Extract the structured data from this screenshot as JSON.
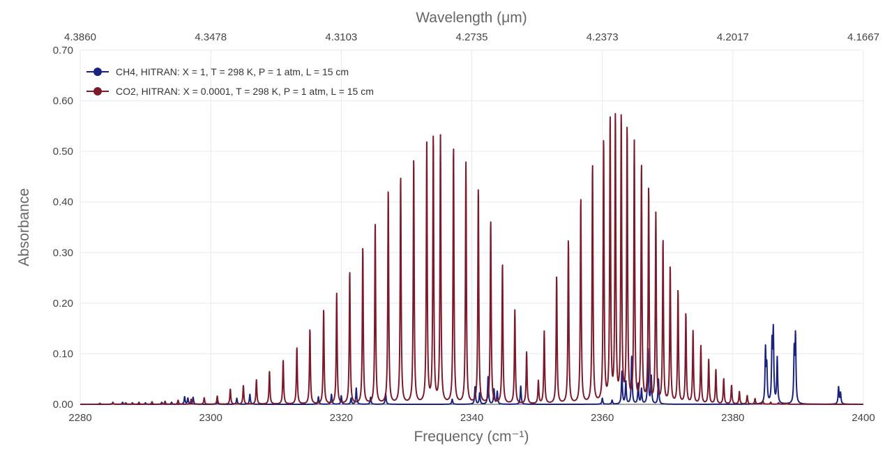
{
  "chart_data": {
    "type": "line",
    "xlabel": "Frequency (cm⁻¹)",
    "x2label": "Wavelength (μm)",
    "ylabel": "Absorbance",
    "xlim": [
      2280,
      2400
    ],
    "ylim": [
      0,
      0.7
    ],
    "x_ticks": [
      "2280",
      "2300",
      "2320",
      "2340",
      "2360",
      "2380",
      "2400"
    ],
    "y_ticks": [
      "0.00",
      "0.10",
      "0.20",
      "0.30",
      "0.40",
      "0.50",
      "0.60",
      "0.70"
    ],
    "x2_ticks": [
      "4.3860",
      "4.3478",
      "4.3103",
      "4.2735",
      "4.2373",
      "4.2017",
      "4.1667"
    ],
    "grid": true,
    "legend_position": "top-left",
    "series": [
      {
        "name": "CH4, HITRAN: X = 1, T = 298 K, P = 1 atm, L = 15 cm",
        "color": "#1a237e",
        "peaks": [
          [
            2285.0,
            0.004
          ],
          [
            2286.5,
            0.004
          ],
          [
            2288.0,
            0.003
          ],
          [
            2290.0,
            0.003
          ],
          [
            2292.5,
            0.004
          ],
          [
            2294.0,
            0.004
          ],
          [
            2296.0,
            0.015
          ],
          [
            2296.5,
            0.012
          ],
          [
            2297.3,
            0.014
          ],
          [
            2301.0,
            0.006
          ],
          [
            2304.0,
            0.012
          ],
          [
            2306.0,
            0.02
          ],
          [
            2316.5,
            0.015
          ],
          [
            2318.5,
            0.02
          ],
          [
            2320.0,
            0.017
          ],
          [
            2321.5,
            0.012
          ],
          [
            2322.3,
            0.032
          ],
          [
            2324.5,
            0.014
          ],
          [
            2326.8,
            0.022
          ],
          [
            2337.0,
            0.01
          ],
          [
            2340.5,
            0.035
          ],
          [
            2341.2,
            0.022
          ],
          [
            2342.5,
            0.055
          ],
          [
            2343.4,
            0.03
          ],
          [
            2343.9,
            0.025
          ],
          [
            2347.5,
            0.036
          ],
          [
            2360.0,
            0.012
          ],
          [
            2361.5,
            0.008
          ],
          [
            2363.0,
            0.065
          ],
          [
            2363.6,
            0.045
          ],
          [
            2364.5,
            0.095
          ],
          [
            2365.5,
            0.04
          ],
          [
            2366.0,
            0.03
          ],
          [
            2367.0,
            0.108
          ],
          [
            2367.5,
            0.055
          ],
          [
            2368.6,
            0.05
          ],
          [
            2385.0,
            0.105
          ],
          [
            2385.2,
            0.07
          ],
          [
            2386.0,
            0.115
          ],
          [
            2386.2,
            0.137
          ],
          [
            2386.8,
            0.09
          ],
          [
            2389.4,
            0.1
          ],
          [
            2389.6,
            0.13
          ],
          [
            2396.2,
            0.034
          ],
          [
            2396.5,
            0.022
          ]
        ]
      },
      {
        "name": "CO2, HITRAN: X = 0.0001, T = 298 K, P = 1 atm, L = 15 cm",
        "color": "#7b1a2a",
        "peaks": [
          [
            2283.0,
            0.002
          ],
          [
            2285.0,
            0.003
          ],
          [
            2287.0,
            0.003
          ],
          [
            2289.0,
            0.004
          ],
          [
            2291.0,
            0.005
          ],
          [
            2293.0,
            0.006
          ],
          [
            2295.0,
            0.008
          ],
          [
            2297.0,
            0.01
          ],
          [
            2299.0,
            0.013
          ],
          [
            2301.0,
            0.016
          ],
          [
            2303.0,
            0.03
          ],
          [
            2305.0,
            0.037
          ],
          [
            2307.0,
            0.048
          ],
          [
            2309.0,
            0.065
          ],
          [
            2311.1,
            0.087
          ],
          [
            2313.2,
            0.112
          ],
          [
            2315.2,
            0.148
          ],
          [
            2317.3,
            0.187
          ],
          [
            2319.3,
            0.218
          ],
          [
            2321.3,
            0.262
          ],
          [
            2323.3,
            0.31
          ],
          [
            2325.2,
            0.358
          ],
          [
            2327.2,
            0.423
          ],
          [
            2329.1,
            0.45
          ],
          [
            2331.1,
            0.485
          ],
          [
            2333.1,
            0.512
          ],
          [
            2334.1,
            0.529
          ],
          [
            2335.2,
            0.527
          ],
          [
            2337.2,
            0.508
          ],
          [
            2339.1,
            0.476
          ],
          [
            2341.0,
            0.427
          ],
          [
            2342.9,
            0.363
          ],
          [
            2344.7,
            0.277
          ],
          [
            2346.6,
            0.185
          ],
          [
            2348.4,
            0.102
          ],
          [
            2350.2,
            0.045
          ],
          [
            2351.1,
            0.143
          ],
          [
            2353.0,
            0.253
          ],
          [
            2354.8,
            0.325
          ],
          [
            2356.7,
            0.407
          ],
          [
            2358.5,
            0.474
          ],
          [
            2360.2,
            0.52
          ],
          [
            2361.2,
            0.562
          ],
          [
            2362.0,
            0.567
          ],
          [
            2362.9,
            0.566
          ],
          [
            2363.8,
            0.543
          ],
          [
            2364.9,
            0.513
          ],
          [
            2366.0,
            0.47
          ],
          [
            2367.1,
            0.425
          ],
          [
            2368.2,
            0.373
          ],
          [
            2369.3,
            0.322
          ],
          [
            2370.4,
            0.27
          ],
          [
            2371.6,
            0.224
          ],
          [
            2372.8,
            0.178
          ],
          [
            2373.9,
            0.143
          ],
          [
            2375.1,
            0.114
          ],
          [
            2376.3,
            0.087
          ],
          [
            2377.4,
            0.068
          ],
          [
            2378.6,
            0.05
          ],
          [
            2379.8,
            0.037
          ],
          [
            2381.0,
            0.025
          ],
          [
            2382.2,
            0.017
          ],
          [
            2383.4,
            0.011
          ],
          [
            2384.6,
            0.007
          ],
          [
            2385.8,
            0.004
          ],
          [
            2387.0,
            0.003
          ],
          [
            2388.2,
            0.002
          ]
        ]
      }
    ]
  }
}
